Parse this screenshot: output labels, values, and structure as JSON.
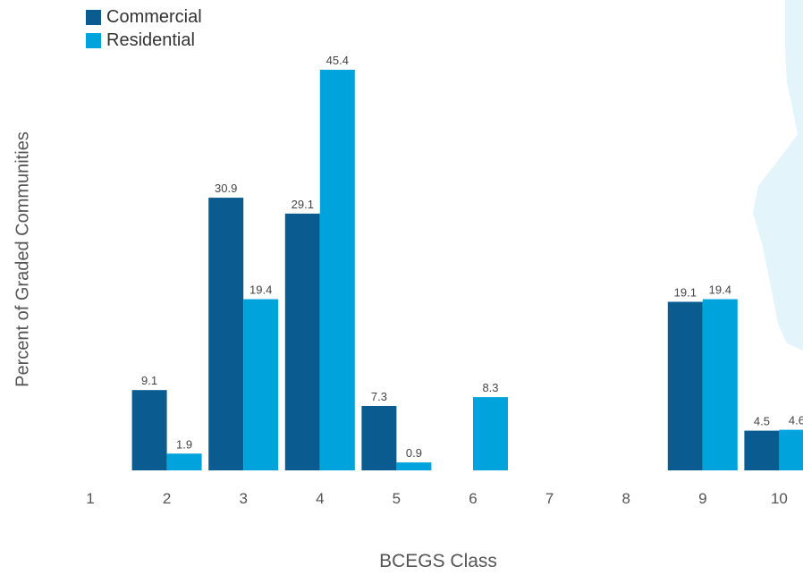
{
  "chart_data": {
    "type": "bar",
    "title": "",
    "xlabel": "BCEGS Class",
    "ylabel": "Percent of Graded Communities",
    "categories": [
      "1",
      "2",
      "3",
      "4",
      "5",
      "6",
      "7",
      "8",
      "9",
      "10"
    ],
    "series": [
      {
        "name": "Commercial",
        "color": "#0a5b8f",
        "values": [
          null,
          9.1,
          30.9,
          29.1,
          7.3,
          null,
          null,
          null,
          19.1,
          4.5
        ]
      },
      {
        "name": "Residential",
        "color": "#00a3dc",
        "values": [
          null,
          1.9,
          19.4,
          45.4,
          0.9,
          8.3,
          null,
          null,
          19.4,
          4.6
        ]
      }
    ],
    "ylim": [
      0,
      46
    ],
    "grid": false,
    "legend_position": "top-left",
    "background_shape_color": "#e3f4fb"
  }
}
